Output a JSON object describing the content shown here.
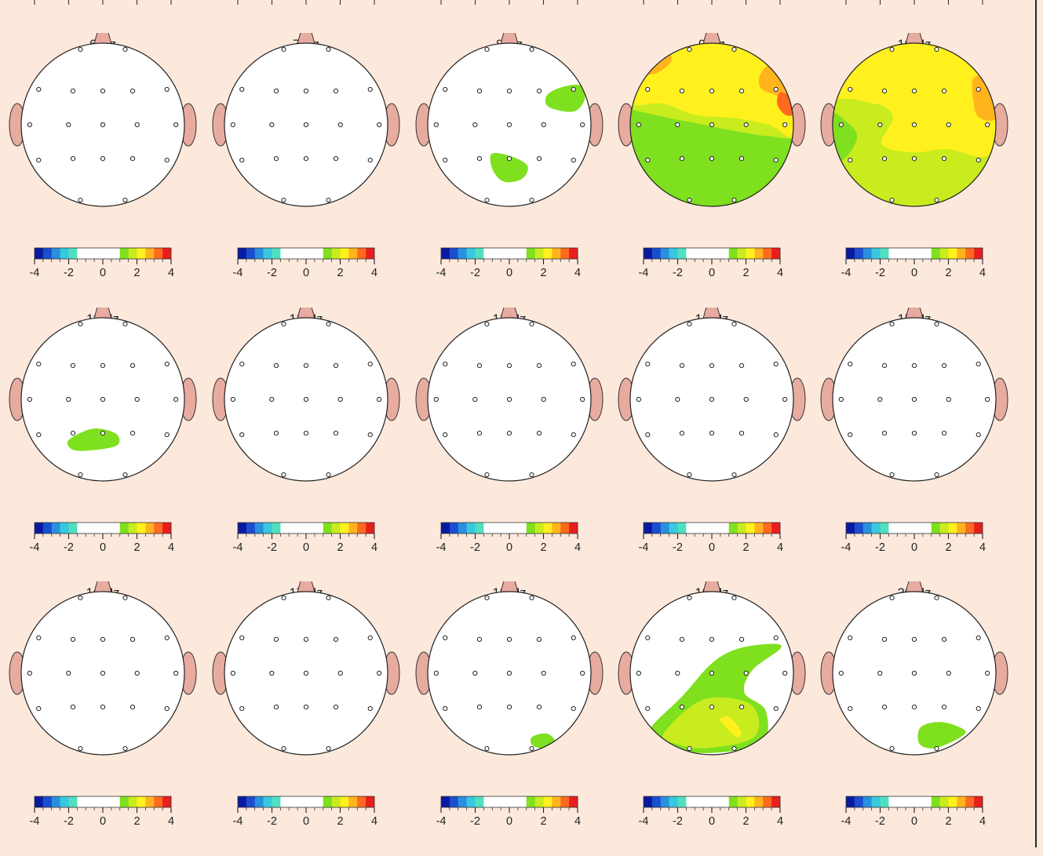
{
  "chart_data": {
    "type": "heatmap",
    "colorbar": {
      "range": [
        -4,
        4
      ],
      "tick_labels": [
        "-4",
        "-2",
        "0",
        "2",
        "4"
      ],
      "colors": {
        "neg": [
          "#0a1aa0",
          "#1a4ed0",
          "#2a8fe0",
          "#38c8e0",
          "#4fe0c0"
        ],
        "neutral": "#ffffff",
        "pos": [
          "#7ee01e",
          "#c8ec1e",
          "#fff01e",
          "#ffb41e",
          "#ff6a1e",
          "#e81e1e"
        ]
      }
    },
    "maps": [
      {
        "label": "6 Hz",
        "blobs": []
      },
      {
        "label": "7 Hz",
        "blobs": []
      },
      {
        "label": "8 Hz",
        "blobs": [
          {
            "level": 1,
            "pts": [
              [
                0.48,
                0.22
              ],
              [
                0.78,
                0.16
              ],
              [
                0.92,
                0.3
              ],
              [
                0.88,
                0.48
              ],
              [
                0.64,
                0.46
              ],
              [
                0.46,
                0.36
              ]
            ]
          },
          {
            "level": 1,
            "pts": [
              [
                -0.22,
                -0.36
              ],
              [
                0.0,
                -0.38
              ],
              [
                0.22,
                -0.5
              ],
              [
                0.16,
                -0.66
              ],
              [
                -0.06,
                -0.7
              ],
              [
                -0.2,
                -0.56
              ]
            ]
          }
        ]
      },
      {
        "label": "9 Hz",
        "fill_level": 1,
        "blobs": [
          {
            "level": 2,
            "pts": [
              [
                -1.05,
                0.22
              ],
              [
                -0.6,
                0.1
              ],
              [
                -0.2,
                0.02
              ],
              [
                0.3,
                -0.08
              ],
              [
                0.7,
                -0.14
              ],
              [
                1.05,
                -0.12
              ],
              [
                1.05,
                0.4
              ],
              [
                -1.05,
                0.4
              ]
            ]
          },
          {
            "level": 3,
            "pts": [
              [
                -1.05,
                0.3
              ],
              [
                -0.6,
                0.26
              ],
              [
                -0.2,
                0.12
              ],
              [
                0.3,
                0.08
              ],
              [
                0.7,
                0.0
              ],
              [
                1.05,
                -0.1
              ],
              [
                1.05,
                1.05
              ],
              [
                -1.05,
                1.05
              ]
            ]
          },
          {
            "level": 4,
            "pts": [
              [
                -0.98,
                0.68
              ],
              [
                -0.72,
                0.62
              ],
              [
                -0.5,
                0.78
              ],
              [
                -0.58,
                0.96
              ],
              [
                -0.9,
                1.0
              ]
            ]
          },
          {
            "level": 4,
            "pts": [
              [
                0.6,
                0.45
              ],
              [
                0.9,
                0.32
              ],
              [
                1.02,
                0.2
              ],
              [
                1.0,
                0.6
              ],
              [
                0.84,
                0.8
              ],
              [
                0.62,
                0.66
              ]
            ]
          },
          {
            "level": 5,
            "pts": [
              [
                0.84,
                0.4
              ],
              [
                0.98,
                0.32
              ],
              [
                1.02,
                0.14
              ],
              [
                0.9,
                0.12
              ],
              [
                0.8,
                0.26
              ]
            ]
          }
        ]
      },
      {
        "label": "10 Hz",
        "fill_level": 3,
        "blobs": [
          {
            "level": 2,
            "pts": [
              [
                -1.05,
                0.2
              ],
              [
                -0.5,
                0.26
              ],
              [
                -0.26,
                0.1
              ],
              [
                -0.4,
                -0.24
              ],
              [
                -0.02,
                -0.34
              ],
              [
                0.4,
                -0.3
              ],
              [
                0.82,
                -0.4
              ],
              [
                1.05,
                -0.34
              ],
              [
                1.05,
                -1.05
              ],
              [
                -1.05,
                -1.05
              ]
            ]
          },
          {
            "level": 1,
            "pts": [
              [
                -1.05,
                0.14
              ],
              [
                -0.86,
                0.06
              ],
              [
                -0.7,
                -0.14
              ],
              [
                -0.86,
                -0.42
              ],
              [
                -1.05,
                -0.4
              ]
            ]
          },
          {
            "level": 4,
            "pts": [
              [
                0.72,
                0.56
              ],
              [
                0.86,
                0.58
              ],
              [
                1.02,
                0.28
              ],
              [
                0.98,
                0.06
              ],
              [
                0.78,
                0.1
              ],
              [
                0.72,
                0.32
              ]
            ]
          }
        ]
      },
      {
        "label": "11 Hz",
        "blobs": [
          {
            "level": 1,
            "pts": [
              [
                -0.42,
                -0.5
              ],
              [
                -0.12,
                -0.36
              ],
              [
                0.16,
                -0.42
              ],
              [
                0.18,
                -0.56
              ],
              [
                -0.1,
                -0.62
              ],
              [
                -0.36,
                -0.62
              ]
            ]
          }
        ]
      },
      {
        "label": "12 Hz",
        "blobs": []
      },
      {
        "label": "13 Hz",
        "blobs": []
      },
      {
        "label": "14 Hz",
        "blobs": []
      },
      {
        "label": "15 Hz",
        "blobs": []
      },
      {
        "label": "16 Hz",
        "blobs": []
      },
      {
        "label": "17 Hz",
        "blobs": []
      },
      {
        "label": "18 Hz",
        "blobs": [
          {
            "level": 1,
            "pts": [
              [
                0.28,
                -0.78
              ],
              [
                0.46,
                -0.74
              ],
              [
                0.56,
                -0.84
              ],
              [
                0.42,
                -0.92
              ],
              [
                0.28,
                -0.88
              ]
            ]
          }
        ]
      },
      {
        "label": "19 Hz",
        "blobs": [
          {
            "level": 1,
            "pts": [
              [
                -0.76,
                -0.7
              ],
              [
                -0.36,
                -0.28
              ],
              [
                0.0,
                0.12
              ],
              [
                0.32,
                0.3
              ],
              [
                0.74,
                0.36
              ],
              [
                0.84,
                0.3
              ],
              [
                0.5,
                0.04
              ],
              [
                0.4,
                -0.24
              ],
              [
                0.66,
                -0.46
              ],
              [
                0.6,
                -0.86
              ],
              [
                -0.1,
                -0.98
              ],
              [
                -0.54,
                -0.86
              ]
            ]
          },
          {
            "level": 2,
            "pts": [
              [
                -0.6,
                -0.76
              ],
              [
                -0.3,
                -0.44
              ],
              [
                0.0,
                -0.3
              ],
              [
                0.44,
                -0.36
              ],
              [
                0.58,
                -0.6
              ],
              [
                0.46,
                -0.82
              ],
              [
                -0.1,
                -0.92
              ],
              [
                -0.46,
                -0.86
              ]
            ]
          },
          {
            "level": 3,
            "pts": [
              [
                0.1,
                -0.56
              ],
              [
                0.22,
                -0.54
              ],
              [
                0.36,
                -0.72
              ],
              [
                0.3,
                -0.78
              ],
              [
                0.14,
                -0.62
              ]
            ]
          }
        ]
      },
      {
        "label": "20 Hz",
        "blobs": [
          {
            "level": 1,
            "pts": [
              [
                0.08,
                -0.66
              ],
              [
                0.34,
                -0.6
              ],
              [
                0.62,
                -0.7
              ],
              [
                0.54,
                -0.8
              ],
              [
                0.24,
                -0.92
              ],
              [
                0.06,
                -0.86
              ]
            ]
          }
        ]
      }
    ]
  }
}
